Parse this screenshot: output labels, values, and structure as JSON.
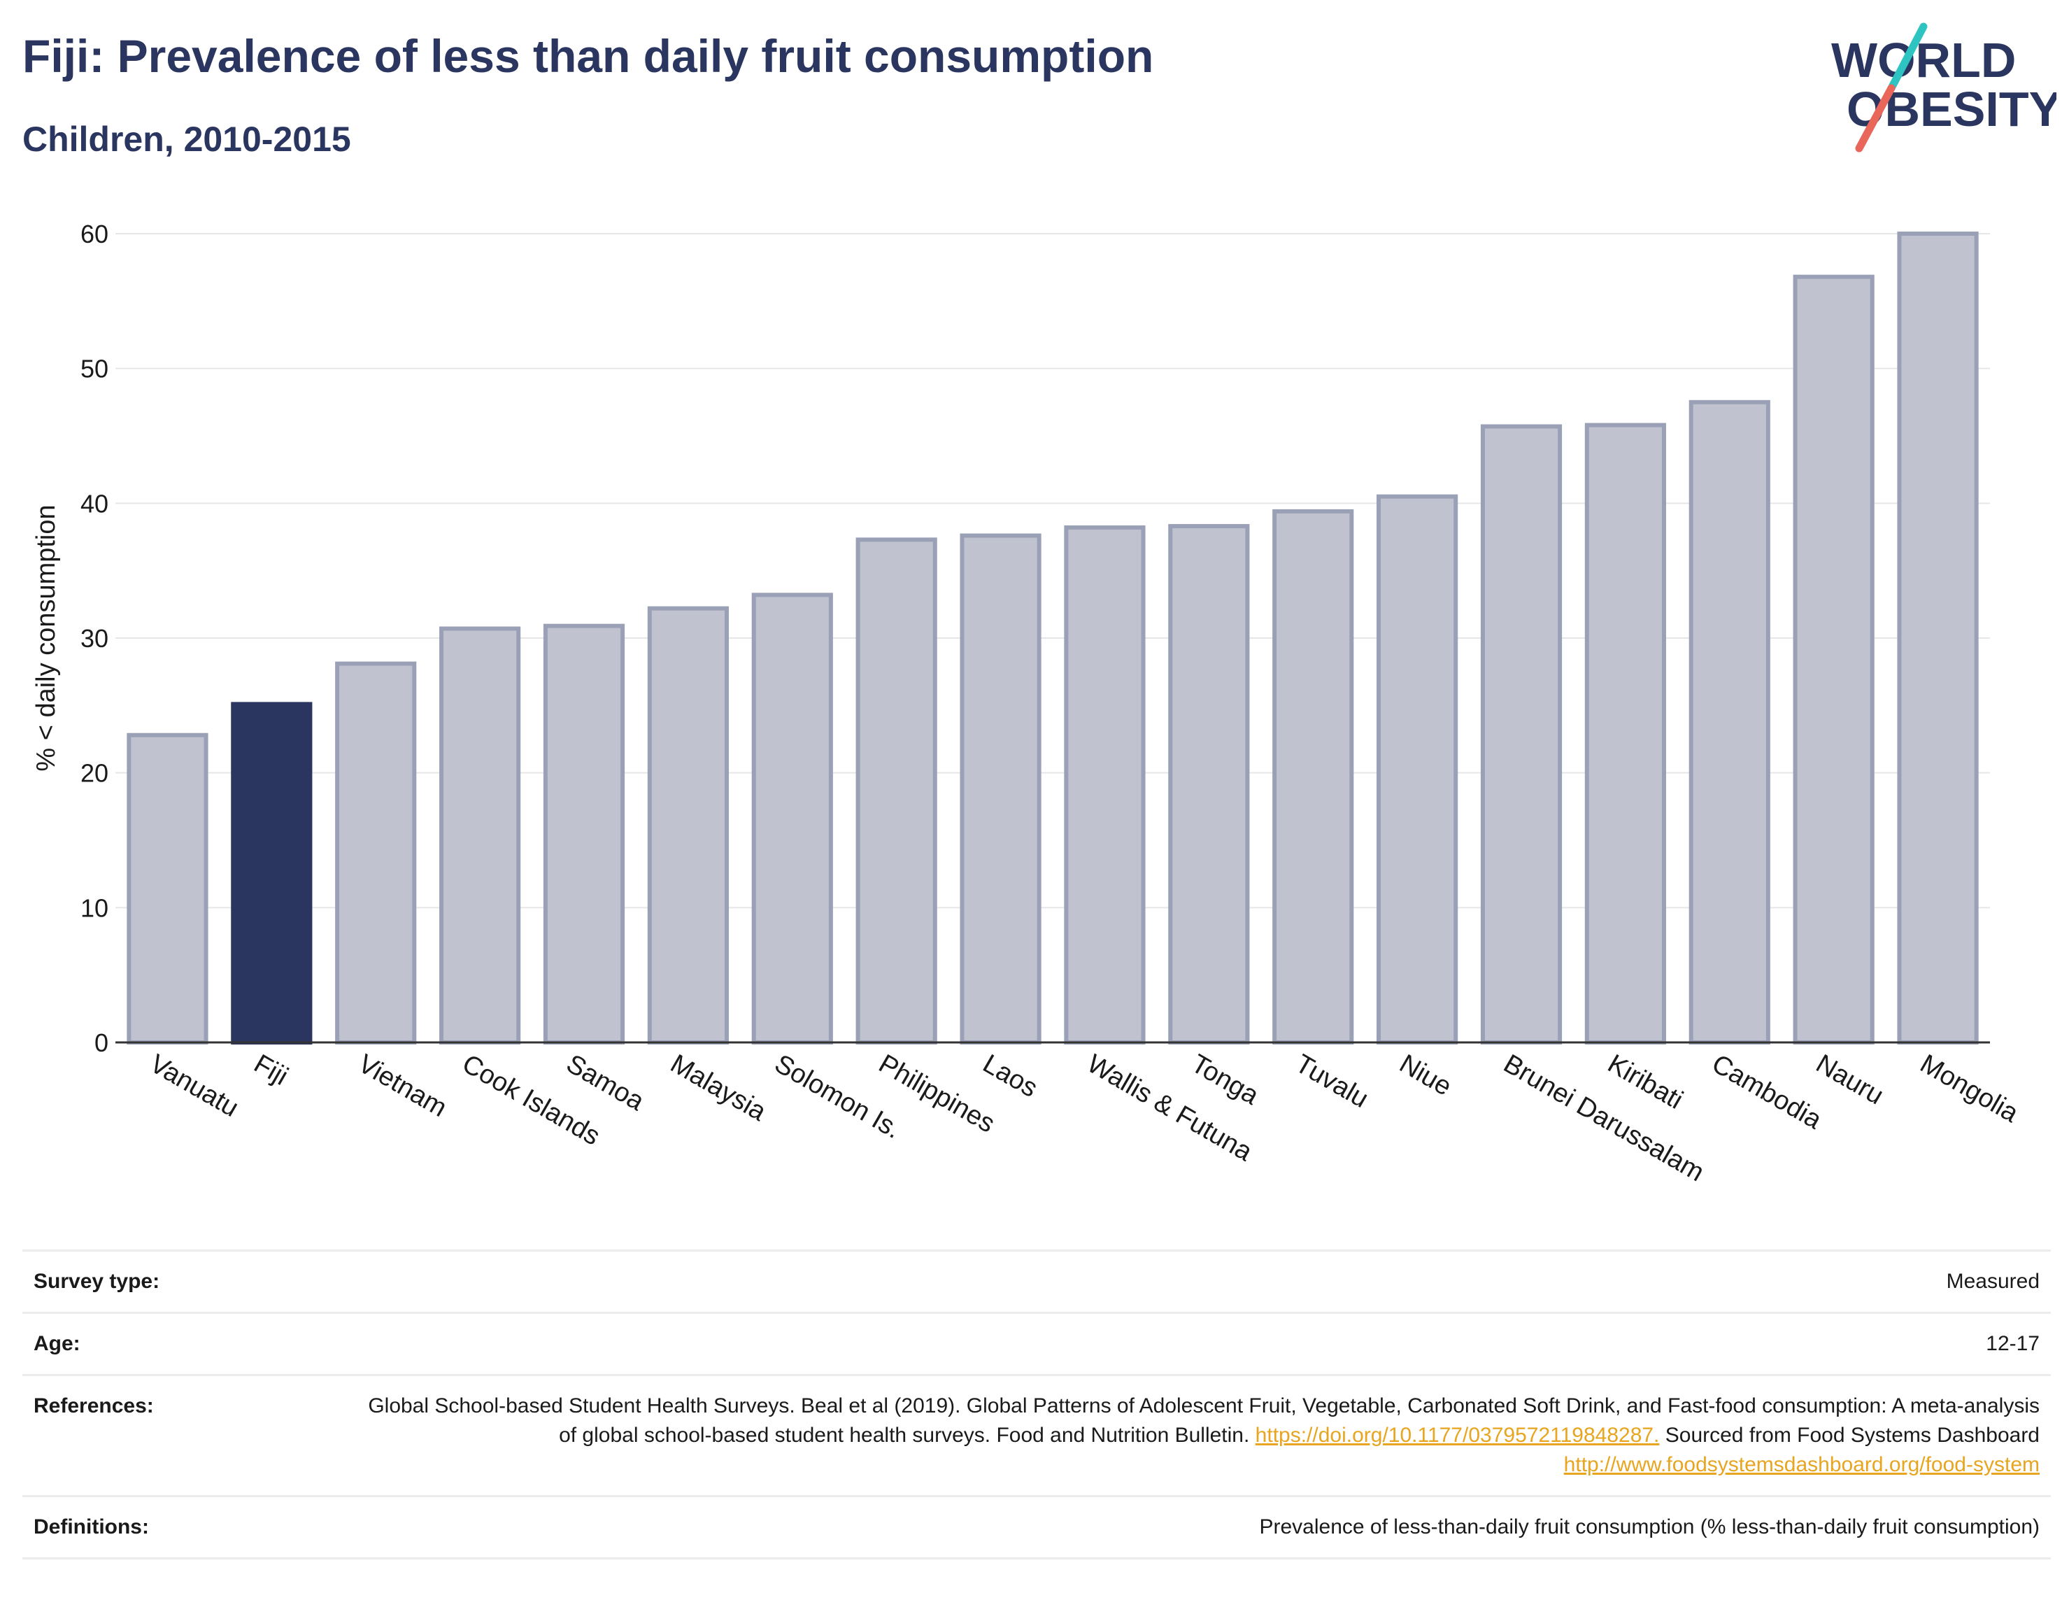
{
  "header": {
    "title": "Fiji: Prevalence of less than daily fruit consumption",
    "subtitle": "Children, 2010-2015"
  },
  "logo": {
    "line1": "WORLD",
    "line2": "OBESITY",
    "colors": {
      "text": "#2b3660",
      "teal": "#2ec4c2",
      "coral": "#e8675a"
    }
  },
  "chart_data": {
    "type": "bar",
    "ylabel": "% < daily consumption",
    "ylim": [
      0,
      60
    ],
    "yticks": [
      0,
      10,
      20,
      30,
      40,
      50,
      60
    ],
    "grid": true,
    "highlight": "Fiji",
    "colors": {
      "highlight": "#2b3660",
      "default_fill": "#c0c3cf",
      "default_stroke": "#9aa0b6"
    },
    "categories": [
      "Vanuatu",
      "Fiji",
      "Vietnam",
      "Cook Islands",
      "Samoa",
      "Malaysia",
      "Solomon Is.",
      "Philippines",
      "Laos",
      "Wallis & Futuna",
      "Tonga",
      "Tuvalu",
      "Niue",
      "Brunei Darussalam",
      "Kiribati",
      "Cambodia",
      "Nauru",
      "Mongolia"
    ],
    "values": [
      22.8,
      25.1,
      28.1,
      30.7,
      30.9,
      32.2,
      33.2,
      37.3,
      37.6,
      38.2,
      38.3,
      39.4,
      40.5,
      45.7,
      45.8,
      47.5,
      56.8,
      60.0
    ]
  },
  "meta": {
    "survey_type": {
      "label": "Survey type:",
      "value": "Measured"
    },
    "age": {
      "label": "Age:",
      "value": "12-17"
    },
    "references": {
      "label": "References:",
      "text1": "Global School-based Student Health Surveys. Beal et al (2019). Global Patterns of Adolescent Fruit, Vegetable, Carbonated Soft Drink, and Fast-food consumption: A meta-analysis of global school-based student health surveys. Food and Nutrition Bulletin.",
      "link1": "https://doi.org/10.1177/0379572119848287.",
      "text2": "Sourced from Food Systems Dashboard",
      "link2": "http://www.foodsystemsdashboard.org/food-system"
    },
    "definitions": {
      "label": "Definitions:",
      "value": "Prevalence of less-than-daily fruit consumption (% less-than-daily fruit consumption)"
    }
  }
}
